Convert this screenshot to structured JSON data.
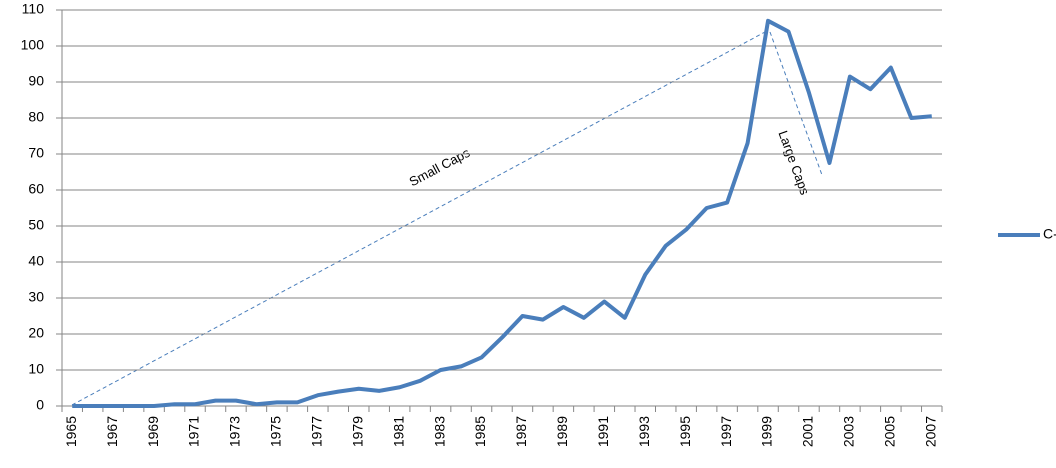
{
  "chart_data": {
    "type": "line",
    "categories": [
      "1965",
      null,
      "1967",
      null,
      "1969",
      null,
      "1971",
      null,
      "1973",
      null,
      "1975",
      null,
      "1977",
      null,
      "1979",
      null,
      "1981",
      null,
      "1983",
      null,
      "1985",
      null,
      "1987",
      null,
      "1989",
      null,
      "1991",
      null,
      "1993",
      null,
      "1995",
      null,
      "1997",
      null,
      "1999",
      null,
      "2001",
      null,
      "2003",
      null,
      "2005",
      null,
      "2007"
    ],
    "series": [
      {
        "name": "C-D",
        "color": "#4a7ebb",
        "values": [
          0,
          0,
          0,
          0,
          0,
          0.5,
          0.5,
          1.5,
          1.5,
          0.5,
          1,
          1,
          3,
          4,
          4.8,
          4.2,
          5.2,
          7,
          10,
          11,
          13.5,
          19,
          25,
          24,
          27.5,
          24.5,
          29,
          24.5,
          36.5,
          44.5,
          49,
          55,
          56.5,
          73,
          107,
          104,
          87,
          67.5,
          91.5,
          88,
          94,
          80,
          80.5
        ]
      }
    ],
    "ylim": [
      0,
      110
    ],
    "yticks": [
      0,
      10,
      20,
      30,
      40,
      50,
      60,
      70,
      80,
      90,
      100,
      110
    ],
    "grid": true,
    "legend": "right",
    "annotations": [
      "Small Caps",
      "Large Caps"
    ]
  }
}
